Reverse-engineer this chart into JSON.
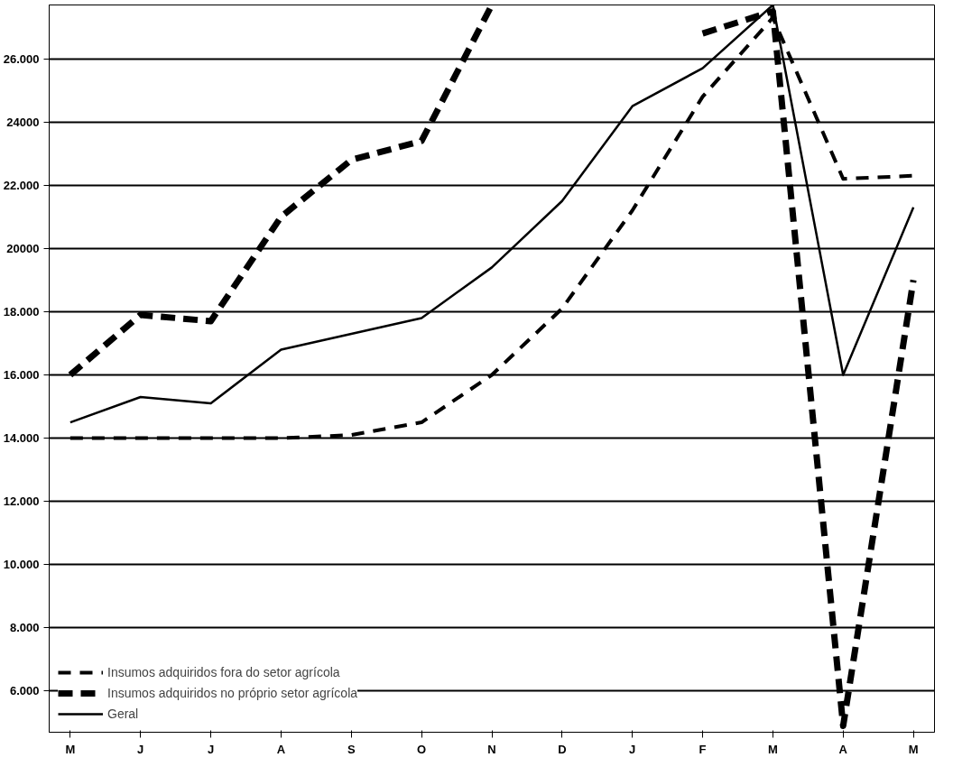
{
  "chart_data": {
    "type": "line",
    "categories": [
      "M",
      "J",
      "J",
      "A",
      "S",
      "O",
      "N",
      "D",
      "J",
      "F",
      "M",
      "A",
      "M"
    ],
    "series": [
      {
        "name": "Insumos adquiridos fora do setor agrícola",
        "color": "#000000",
        "line_style": "dashed",
        "values": [
          14000,
          14000,
          14000,
          14000,
          14100,
          14500,
          16000,
          18100,
          21200,
          24800,
          27300,
          22200,
          22300
        ]
      },
      {
        "name": "Insumos adquiridos no próprio setor agrícola",
        "color": "#000000",
        "line_style": "dashed",
        "values": [
          16000,
          17900,
          17700,
          21000,
          22800,
          23400,
          27700,
          null,
          null,
          26800,
          27500,
          4900,
          19000
        ]
      },
      {
        "name": "Geral",
        "color": "#000000",
        "line_style": "solid",
        "values": [
          14500,
          15300,
          15100,
          16800,
          17300,
          17800,
          19400,
          21500,
          24500,
          25700,
          27700,
          16000,
          21300
        ]
      }
    ],
    "ylim": [
      4700,
      27700
    ],
    "yticks": [
      {
        "value": 6000,
        "label": "6.000"
      },
      {
        "value": 8000,
        "label": "8.000"
      },
      {
        "value": 10000,
        "label": "10.000"
      },
      {
        "value": 12000,
        "label": "12.000"
      },
      {
        "value": 14000,
        "label": "14.000"
      },
      {
        "value": 16000,
        "label": "16.000"
      },
      {
        "value": 18000,
        "label": "18.000"
      },
      {
        "value": 20000,
        "label": "20000"
      },
      {
        "value": 22000,
        "label": "22.000"
      },
      {
        "value": 24000,
        "label": "24000"
      },
      {
        "value": 26000,
        "label": "26.000"
      }
    ],
    "grid": "y",
    "legend": "bottom left",
    "marker": "none"
  }
}
